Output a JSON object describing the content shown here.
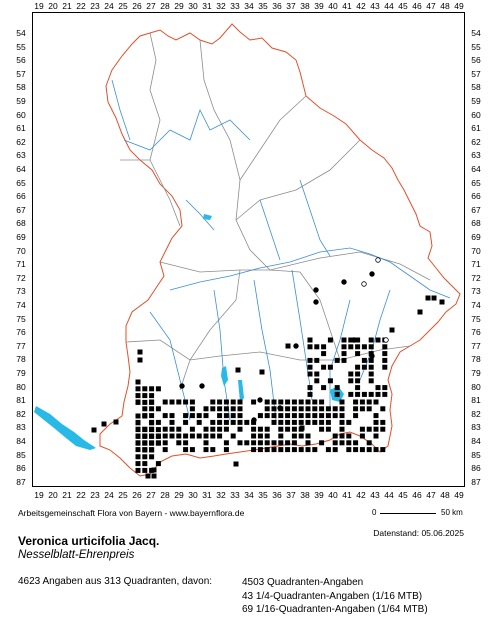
{
  "map": {
    "x_ticks": [
      "19",
      "20",
      "21",
      "22",
      "23",
      "24",
      "25",
      "26",
      "27",
      "28",
      "29",
      "30",
      "31",
      "32",
      "33",
      "34",
      "35",
      "36",
      "37",
      "38",
      "39",
      "40",
      "41",
      "42",
      "43",
      "44",
      "45",
      "46",
      "47",
      "48",
      "49"
    ],
    "y_ticks": [
      "54",
      "55",
      "56",
      "57",
      "58",
      "59",
      "60",
      "61",
      "62",
      "63",
      "64",
      "65",
      "66",
      "67",
      "68",
      "69",
      "70",
      "71",
      "72",
      "73",
      "74",
      "75",
      "76",
      "77",
      "78",
      "79",
      "80",
      "81",
      "82",
      "83",
      "84",
      "85",
      "86",
      "87"
    ],
    "colors": {
      "border": "#e0502a",
      "districts": "#8c8c8c",
      "rivers": "#3a8fd6",
      "lakes": "#29b9e6",
      "dots": "#000000"
    }
  },
  "credit": "Arbeitsgemeinschaft Flora von Bayern - www.bayernflora.de",
  "datum": "Datenstand: 05.06.2025",
  "scale": {
    "zero": "0",
    "fifty": "50 km"
  },
  "species": {
    "latin": "Veronica urticifolia Jacq.",
    "german": "Nesselblatt-Ehrenpreis"
  },
  "stats": {
    "total": "4623 Angaben aus 313 Quadranten, davon:",
    "q1": "4503 Quadranten-Angaben",
    "q2": "43 1/4-Quadranten-Angaben (1/16 MTB)",
    "q3": "69 1/16-Quadranten-Angaben (1/64 MTB)"
  }
}
